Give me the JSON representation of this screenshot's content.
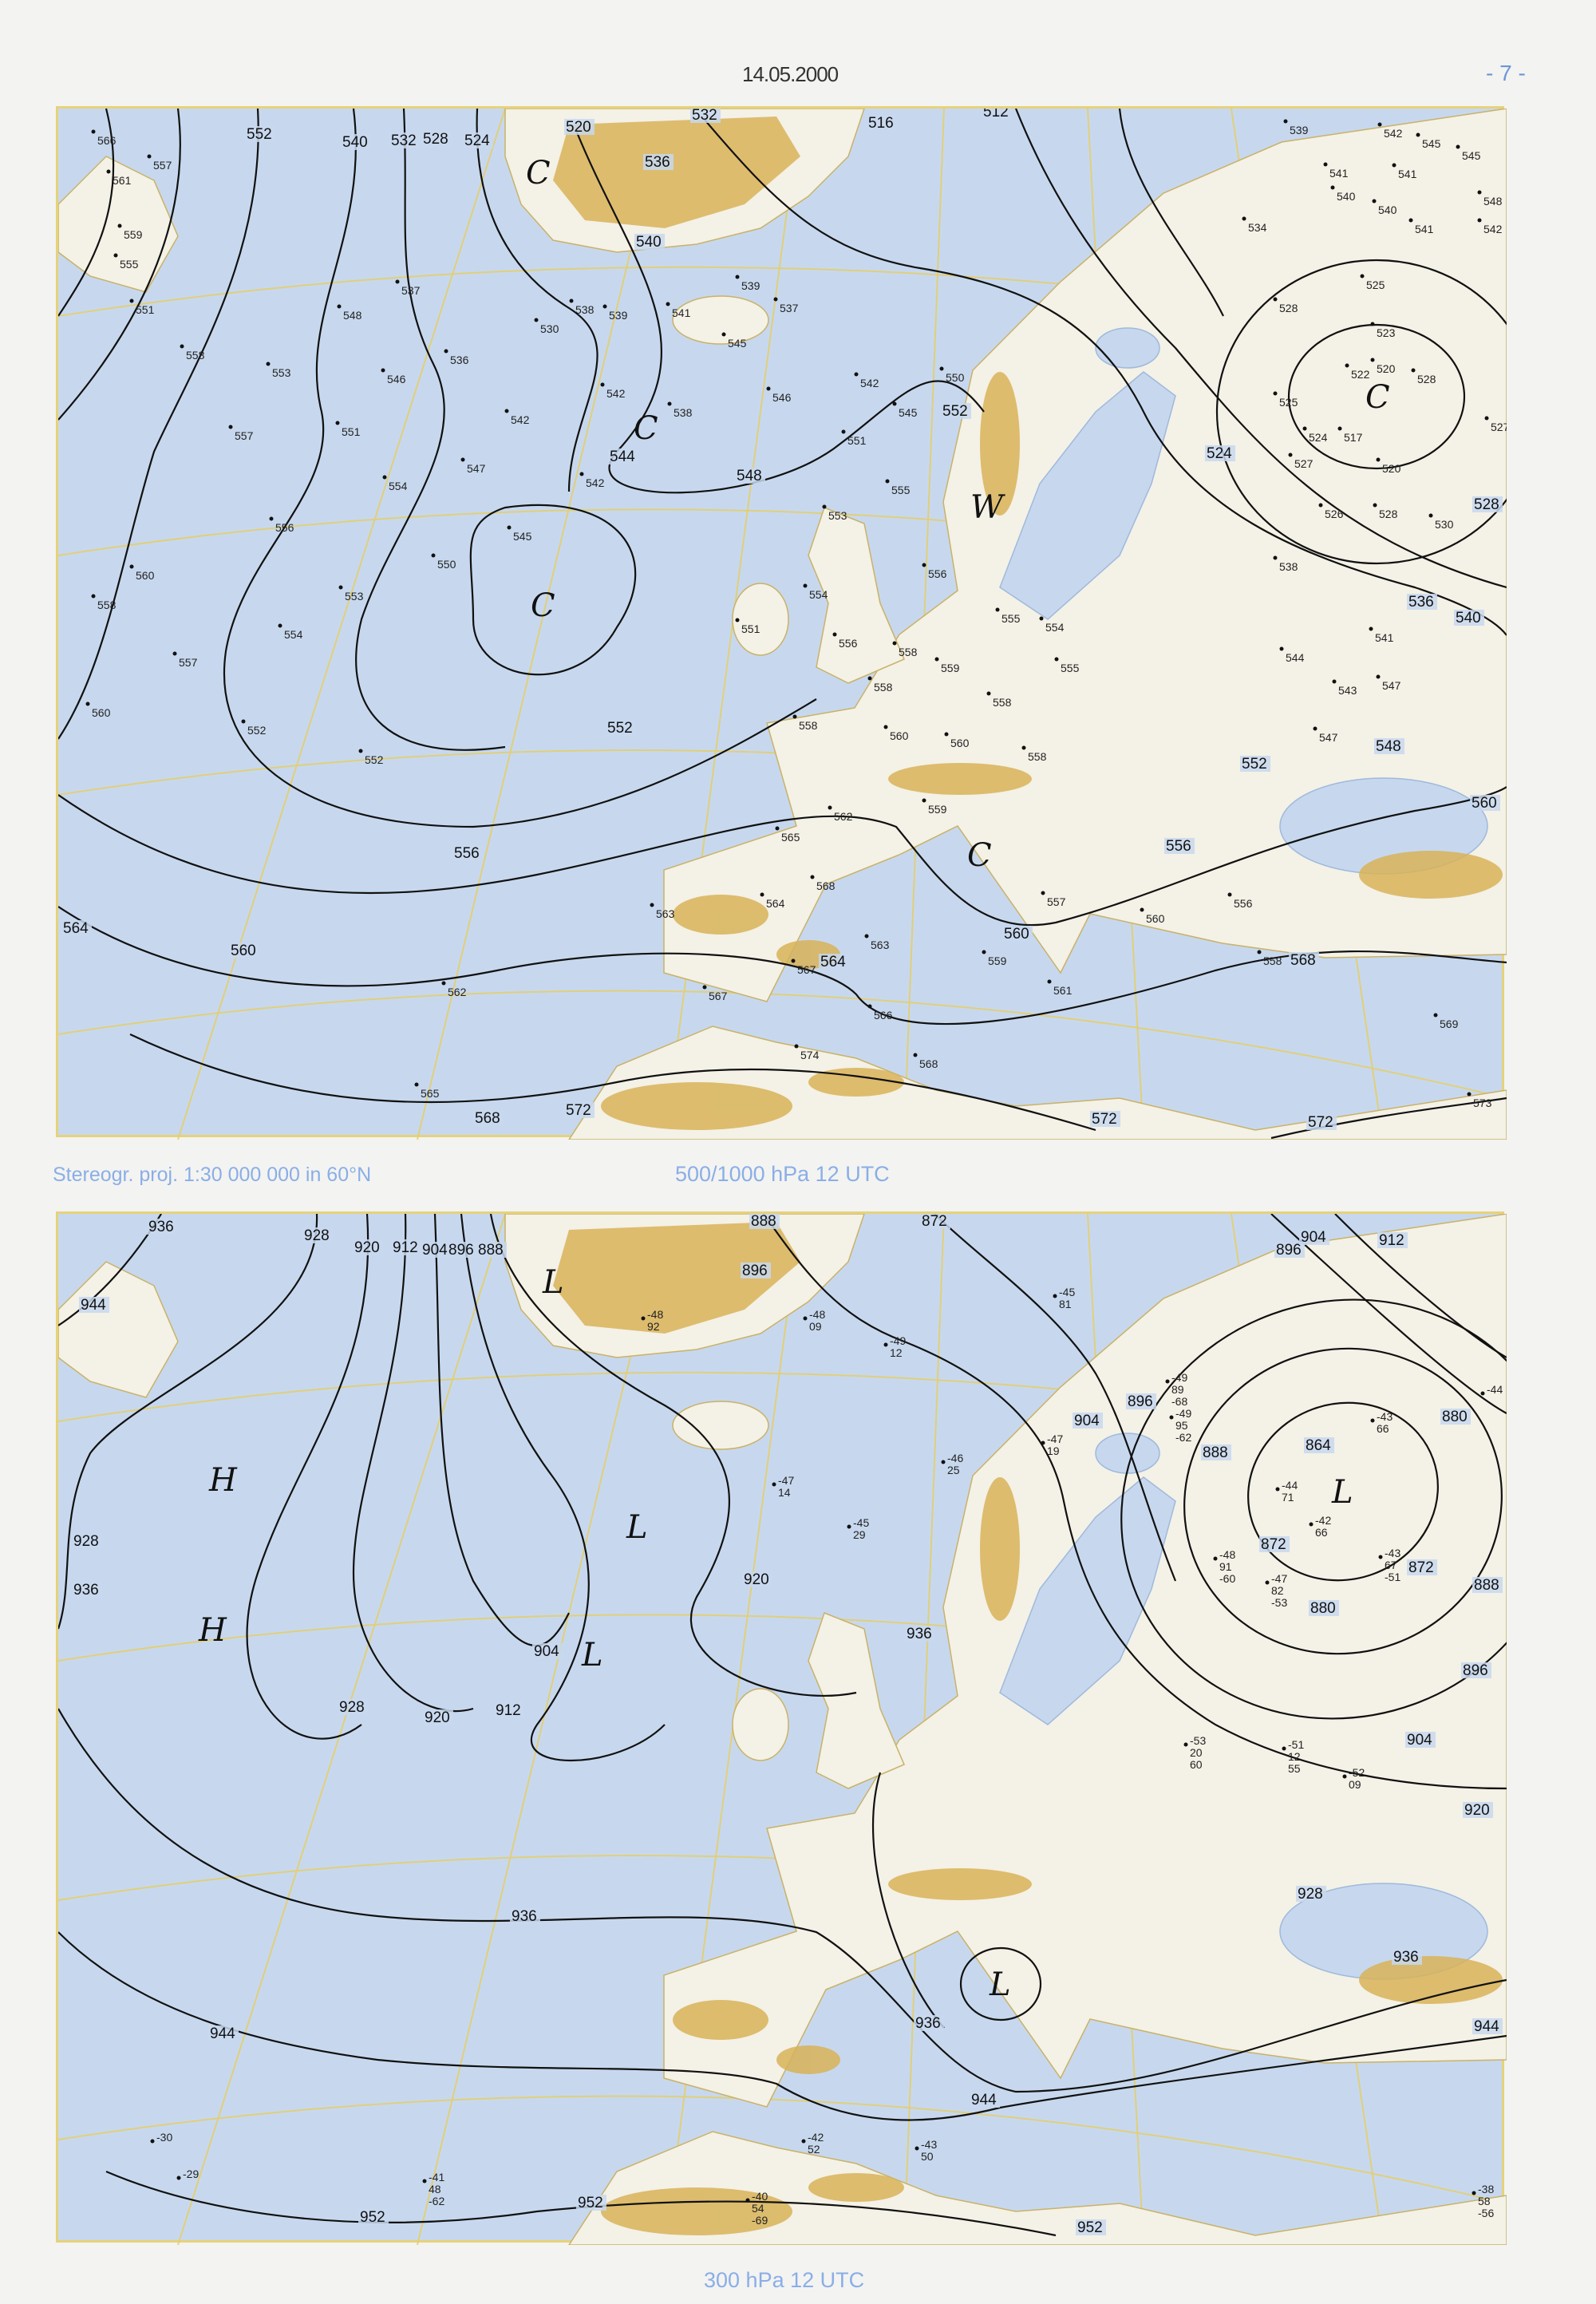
{
  "header": {
    "date": "14.05.2000",
    "page": "- 7 -"
  },
  "colors": {
    "sea": "#c7d8ee",
    "land": "#f4f1e6",
    "relief": "#d8b358",
    "grid": "#e3cf6e",
    "caption": "#8aaee6"
  },
  "projection_note": "Stereogr. proj. 1:30 000 000 in 60°N",
  "maps": [
    {
      "title": "500/1000 hPa 12 UTC",
      "isoline_labels": [
        "552",
        "540",
        "532",
        "528",
        "524",
        "520",
        "532",
        "516",
        "512",
        "536",
        "540",
        "544",
        "548",
        "552",
        "552",
        "556",
        "560",
        "564",
        "568",
        "572",
        "564",
        "560",
        "556",
        "552",
        "548",
        "536",
        "540",
        "528",
        "524",
        "572",
        "572",
        "568",
        "560"
      ],
      "centers": [
        "C",
        "C",
        "C",
        "W",
        "C",
        "C"
      ],
      "stations": [
        "566",
        "557",
        "561",
        "559",
        "555",
        "551",
        "558",
        "553",
        "557",
        "551",
        "554",
        "556",
        "560",
        "558",
        "557",
        "560",
        "552",
        "553",
        "554",
        "550",
        "545",
        "547",
        "542",
        "542",
        "538",
        "542",
        "546",
        "548",
        "537",
        "536",
        "530",
        "538",
        "539",
        "541",
        "539",
        "537",
        "545",
        "546",
        "542",
        "545",
        "550",
        "551",
        "555",
        "553",
        "556",
        "554",
        "551",
        "556",
        "558",
        "559",
        "555",
        "554",
        "555",
        "558",
        "558",
        "558",
        "560",
        "560",
        "558",
        "562",
        "559",
        "565",
        "564",
        "568",
        "563",
        "567",
        "567",
        "566",
        "574",
        "568",
        "563",
        "559",
        "557",
        "561",
        "560",
        "556",
        "558",
        "562",
        "565",
        "552",
        "569",
        "573",
        "539",
        "542",
        "545",
        "545",
        "541",
        "541",
        "540",
        "540",
        "548",
        "542",
        "541",
        "534",
        "525",
        "528",
        "523",
        "522",
        "520",
        "528",
        "525",
        "524",
        "517",
        "527",
        "520",
        "527",
        "526",
        "528",
        "530",
        "538",
        "541",
        "547",
        "543",
        "547",
        "544"
      ]
    },
    {
      "title": "300 hPa 12 UTC",
      "isoline_labels": [
        "936",
        "928",
        "920",
        "912",
        "904",
        "896",
        "888",
        "888",
        "872",
        "896",
        "896",
        "904",
        "912",
        "904",
        "896",
        "888",
        "880",
        "864",
        "872",
        "880",
        "872",
        "888",
        "896",
        "904",
        "920",
        "928",
        "936",
        "936",
        "920",
        "912",
        "904",
        "928",
        "920",
        "944",
        "928",
        "936",
        "944",
        "944",
        "936",
        "944",
        "952",
        "952",
        "952",
        "936"
      ],
      "centers": [
        "L",
        "H",
        "L",
        "H",
        "L",
        "L",
        "L"
      ],
      "stations": [
        [
          "-43",
          "66"
        ],
        [
          "-44",
          "71"
        ],
        [
          "-42",
          "66"
        ],
        [
          "-43",
          "67",
          "-51"
        ],
        [
          "-48",
          "91",
          "-60"
        ],
        [
          "-49",
          "89",
          "-68"
        ],
        [
          "-49",
          "95",
          "-62"
        ],
        [
          "-47",
          "82",
          "-53"
        ],
        [
          "-44"
        ],
        [
          "-45",
          "81"
        ],
        [
          "-48",
          "92"
        ],
        [
          "-48",
          "09"
        ],
        [
          "-49",
          "12"
        ],
        [
          "-46",
          "25"
        ],
        [
          "-45",
          "29"
        ],
        [
          "-47",
          "14"
        ],
        [
          "-47",
          "19"
        ],
        [
          "-53",
          "20",
          "60"
        ],
        [
          "-51",
          "12",
          "55"
        ],
        [
          "-52",
          "09"
        ],
        [
          "-40",
          "54",
          "-69"
        ],
        [
          "-42",
          "52"
        ],
        [
          "-43",
          "50"
        ],
        [
          "-38",
          "58",
          "-56"
        ],
        [
          "-41",
          "48",
          "-62"
        ],
        [
          "-29"
        ],
        [
          "-30"
        ]
      ]
    }
  ]
}
